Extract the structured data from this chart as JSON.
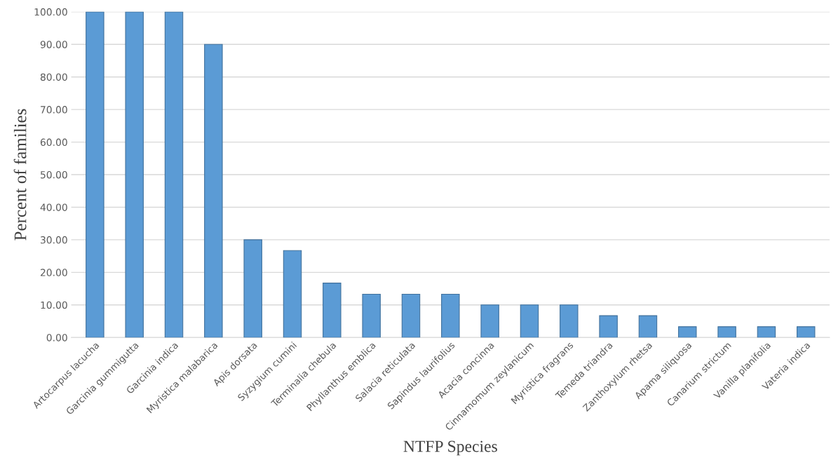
{
  "chart_data": {
    "type": "bar",
    "xlabel": "NTFP Species",
    "ylabel": "Percent of families",
    "categories": [
      "Artocarpus lacucha",
      "Garcinia gummigutta",
      "Garcinia indica",
      "Myristica malabarica",
      "Apis dorsata",
      "Syzygium cumini",
      "Terminalia chebula",
      "Phyllanthus emblica",
      "Salacia reticulata",
      "Sapindus laurifolius",
      "Acacia concinna",
      "Cinnamomum zeylanicum",
      "Myristica fragrans",
      "Temeda triandra",
      "Zanthoxylum rhetsa",
      "Apama siliquosa",
      "Canarium strictum",
      "Vanilla planifolia",
      "Vateria indica"
    ],
    "values": [
      100,
      100,
      100,
      90,
      30,
      26.7,
      16.7,
      13.3,
      13.3,
      13.3,
      10,
      10,
      10,
      6.7,
      6.7,
      3.3,
      3.3,
      3.3,
      3.3
    ],
    "color": "#5b9bd5",
    "ylim": [
      0,
      100
    ],
    "yticks": [
      {
        "value": 0,
        "label": "0.00"
      },
      {
        "value": 10,
        "label": "10.00"
      },
      {
        "value": 20,
        "label": "20.00"
      },
      {
        "value": 30,
        "label": "30.00"
      },
      {
        "value": 40,
        "label": "40.00"
      },
      {
        "value": 50,
        "label": "50.00"
      },
      {
        "value": 60,
        "label": "60.00"
      },
      {
        "value": 70,
        "label": "70.00"
      },
      {
        "value": 80,
        "label": "80.00"
      },
      {
        "value": 90,
        "label": "90.00"
      },
      {
        "value": 100,
        "label": "100.00"
      }
    ],
    "grid": "y"
  }
}
